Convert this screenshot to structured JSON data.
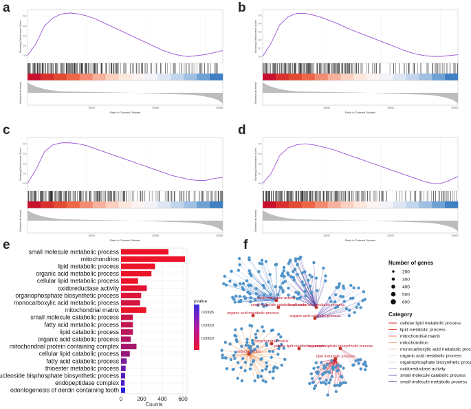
{
  "panels": {
    "a": "a",
    "b": "b",
    "c": "c",
    "d": "d",
    "e": "e",
    "f": "f"
  },
  "gsea_common": {
    "y_label_top": "Running Enrichment Score",
    "y_label_bottom": "Ranked list metric",
    "x_label": "Rank in Ordered Dataset",
    "x_ticks": [
      "10000",
      "20000",
      "30000"
    ]
  },
  "gsea_panels": [
    {
      "id": "a",
      "y_ticks": [
        "0.4",
        "0.3",
        "0.2",
        "0.1",
        "0.0"
      ],
      "ymin": -0.05,
      "ymax": 0.45,
      "curve": [
        0,
        0.12,
        0.3,
        0.38,
        0.42,
        0.43,
        0.42,
        0.4,
        0.37,
        0.33,
        0.29,
        0.25,
        0.21,
        0.17,
        0.13,
        0.09,
        0.05,
        0.02,
        0.0,
        -0.01,
        0.0,
        0.01,
        0.03,
        0.05
      ]
    },
    {
      "id": "b",
      "y_ticks": [
        "0.5",
        "0.4",
        "0.3",
        "0.2",
        "0.1",
        "0.0"
      ],
      "ymin": -0.05,
      "ymax": 0.55,
      "curve": [
        0,
        0.16,
        0.38,
        0.48,
        0.52,
        0.52,
        0.5,
        0.47,
        0.43,
        0.39,
        0.34,
        0.3,
        0.26,
        0.22,
        0.18,
        0.14,
        0.1,
        0.06,
        0.03,
        0.01,
        0.0,
        0.0,
        0.01,
        0.02
      ]
    },
    {
      "id": "c",
      "y_ticks": [
        "0.4",
        "0.3",
        "0.2",
        "0.1",
        "0.0"
      ],
      "ymin": -0.05,
      "ymax": 0.45,
      "curve": [
        0,
        0.14,
        0.32,
        0.39,
        0.41,
        0.41,
        0.4,
        0.38,
        0.35,
        0.32,
        0.29,
        0.26,
        0.23,
        0.2,
        0.17,
        0.14,
        0.11,
        0.08,
        0.06,
        0.04,
        0.03,
        0.03,
        0.05,
        0.06
      ]
    },
    {
      "id": "d",
      "y_ticks": [
        "0.4",
        "0.3",
        "0.2",
        "0.1",
        "0.0"
      ],
      "ymin": -0.05,
      "ymax": 0.45,
      "curve": [
        0,
        0.1,
        0.28,
        0.36,
        0.39,
        0.4,
        0.39,
        0.37,
        0.35,
        0.32,
        0.29,
        0.26,
        0.23,
        0.2,
        0.17,
        0.14,
        0.11,
        0.08,
        0.05,
        0.02,
        0.0,
        0.0,
        0.03,
        0.07
      ]
    }
  ],
  "chart_data": {
    "type": "bar",
    "orientation": "horizontal",
    "categories": [
      "small molecule metabolic process",
      "mitochondrion",
      "lipid metabolic process",
      "organic acid metabolic process",
      "cellular lipid metabolic process",
      "oxidoreductase activity",
      "organophosphate biosynthetic process",
      "monocarboxylic acid metabolic process",
      "mitochondrial matrix",
      "small molecule catabolic process",
      "fatty acid metabolic process",
      "lipid catabolic process",
      "organic acid catabolic process",
      "mitochondrial protein containing complex",
      "cellular lipid catabolic process",
      "fatty acid catabolic process",
      "thioester metabolic process",
      "nucleoside bisphosphate biosynthetic process",
      "endopeptidase complex",
      "odontogenesis of dentin containing tooth"
    ],
    "values": [
      460,
      620,
      330,
      295,
      165,
      250,
      195,
      185,
      245,
      115,
      115,
      115,
      95,
      150,
      85,
      55,
      45,
      40,
      35,
      40
    ],
    "pvalues": [
      5e-05,
      5e-05,
      5e-05,
      5e-05,
      5e-05,
      6e-05,
      7e-05,
      8e-05,
      5e-05,
      9e-05,
      0.0001,
      0.00011,
      0.00012,
      0.00013,
      0.00015,
      0.00018,
      0.0002,
      0.00022,
      0.00024,
      0.00028
    ],
    "xlabel": "Counts",
    "x_ticks": [
      "0",
      "200",
      "400",
      "600"
    ],
    "xlim": [
      0,
      640
    ],
    "legend_title": "pvalue",
    "legend_ticks": [
      "0.00026",
      "0.00018",
      "0.00010"
    ]
  },
  "network": {
    "genes_legend_title": "Number of genes",
    "genes_sizes": [
      "200",
      "300",
      "400",
      "500",
      "600"
    ],
    "category_legend_title": "Category",
    "categories": [
      {
        "label": "cellular lipid metabolic process",
        "color": "#d62728"
      },
      {
        "label": "lipid metabolic process",
        "color": "#e8453c"
      },
      {
        "label": "mitochondrial matrix",
        "color": "#f08070"
      },
      {
        "label": "mitochondrion",
        "color": "#f4a582"
      },
      {
        "label": "monocarboxylic acid metabolic process",
        "color": "#f6c9a8"
      },
      {
        "label": "organic acid metabolic process",
        "color": "#fbe3cf"
      },
      {
        "label": "organophosphate biosynthetic process",
        "color": "#e6e0f0"
      },
      {
        "label": "oxidoreductase activity",
        "color": "#b9b4dc"
      },
      {
        "label": "small molecule catabolic process",
        "color": "#7b73c0"
      },
      {
        "label": "small molecule metabolic process",
        "color": "#4a3fa0"
      }
    ],
    "node_labels": [
      "oxidoreductase activity",
      "small molecule catabolic process",
      "small molecule metabolic process",
      "organic acid metabolic process",
      "organic acid catabolic process",
      "mitochondrial matrix",
      "cellular lipid metabolic process",
      "mitochondrion",
      "organophosphate biosynthetic process",
      "lipid metabolic process"
    ]
  }
}
